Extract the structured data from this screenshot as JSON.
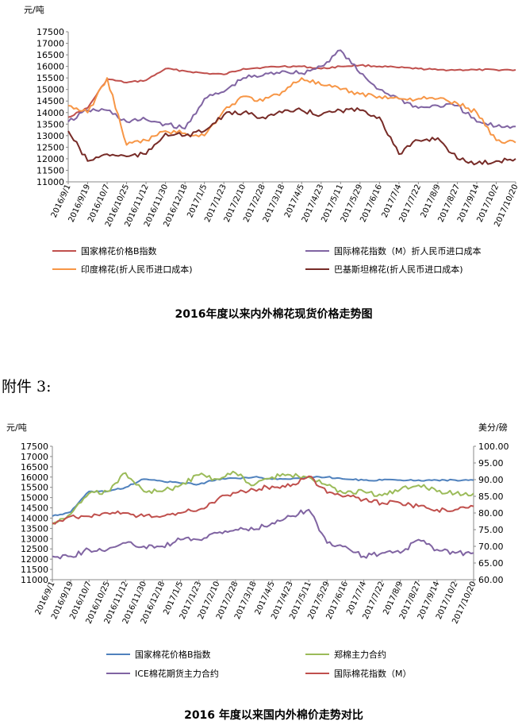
{
  "attachment_label": "附件 3:",
  "chart_data": [
    {
      "type": "line",
      "title": "2016年度以来内外棉花现货价格走势图",
      "ylabel": "元/吨",
      "ylim": [
        11000,
        17500
      ],
      "yticks": [
        11000,
        11500,
        12000,
        12500,
        13000,
        13500,
        14000,
        14500,
        15000,
        15500,
        16000,
        16500,
        17000,
        17500
      ],
      "grid": false,
      "legend": "bottom",
      "x": [
        "2016/9/1",
        "2016/9/19",
        "2016/10/7",
        "2016/10/25",
        "2016/11/12",
        "2016/11/30",
        "2016/12/18",
        "2017/1/5",
        "2017/1/23",
        "2017/2/10",
        "2017/2/28",
        "2017/3/18",
        "2017/4/5",
        "2017/4/23",
        "2017/5/11",
        "2017/5/29",
        "2017/6/16",
        "2017/7/4",
        "2017/7/22",
        "2017/8/9",
        "2017/8/27",
        "2017/9/14",
        "2017/10/2",
        "2017/10/20"
      ],
      "series": [
        {
          "name": "国家棉花价格B指数",
          "color": "#c0504d",
          "axis": "left",
          "values": [
            13800,
            14200,
            15450,
            15300,
            15400,
            15900,
            15800,
            15700,
            15650,
            15900,
            15950,
            16000,
            16000,
            15900,
            16000,
            16050,
            16000,
            15950,
            15900,
            15850,
            15850,
            15850,
            15850,
            15850
          ]
        },
        {
          "name": "国际棉花指数（M）折人民币进口成本",
          "color": "#8064a2",
          "axis": "left",
          "values": [
            13600,
            14100,
            14100,
            13600,
            13700,
            13500,
            13300,
            14600,
            14900,
            15500,
            15600,
            15800,
            15700,
            16000,
            16700,
            15700,
            15000,
            14600,
            14200,
            14300,
            14300,
            13600,
            13400,
            13400
          ]
        },
        {
          "name": "印度棉花(折人民币进口成本)",
          "color": "#f79646",
          "axis": "left",
          "values": [
            14300,
            14000,
            15500,
            12600,
            12800,
            13200,
            13100,
            13000,
            14100,
            14700,
            14500,
            14900,
            15500,
            15200,
            15000,
            14800,
            14700,
            14600,
            14600,
            14600,
            14400,
            14000,
            12800,
            12700
          ]
        },
        {
          "name": "巴基斯坦棉花(折人民币进口成本)",
          "color": "#772b27",
          "axis": "left",
          "values": [
            13200,
            11900,
            12200,
            12100,
            12200,
            13100,
            13000,
            13200,
            13900,
            14000,
            13800,
            14000,
            14100,
            13900,
            14100,
            14100,
            13800,
            12200,
            12800,
            12900,
            12000,
            11800,
            11900,
            12000
          ]
        }
      ]
    },
    {
      "type": "line",
      "title": "2016 年度以来国内外棉价走势对比",
      "ylabel": "元/吨",
      "y2label": "美分/磅",
      "ylim": [
        11000,
        17500
      ],
      "yticks": [
        11000,
        11500,
        12000,
        12500,
        13000,
        13500,
        14000,
        14500,
        15000,
        15500,
        16000,
        16500,
        17000,
        17500
      ],
      "y2lim": [
        60,
        100
      ],
      "y2ticks": [
        60.0,
        65.0,
        70.0,
        75.0,
        80.0,
        85.0,
        90.0,
        95.0,
        100.0
      ],
      "y2tick_labels": [
        "60.00",
        "65.00",
        "70.00",
        "75.00",
        "80.00",
        "85.00",
        "90.00",
        "95.00",
        "100.00"
      ],
      "grid": false,
      "legend": "bottom",
      "x": [
        "2016/9/1",
        "2016/9/19",
        "2016/10/7",
        "2016/10/25",
        "2016/11/12",
        "2016/11/30",
        "2016/12/18",
        "2017/1/5",
        "2017/1/23",
        "2017/2/10",
        "2017/2/28",
        "2017/3/18",
        "2017/4/5",
        "2017/4/23",
        "2017/5/11",
        "2017/5/29",
        "2017/6/16",
        "2017/7/4",
        "2017/7/22",
        "2017/8/9",
        "2017/8/27",
        "2017/9/14",
        "2017/10/2",
        "2017/10/20"
      ],
      "series": [
        {
          "name": "国家棉花价格B指数",
          "color": "#4f81bd",
          "axis": "left",
          "values": [
            14100,
            14300,
            15300,
            15300,
            15500,
            15900,
            15800,
            15700,
            15650,
            15900,
            15950,
            16000,
            15900,
            15900,
            16000,
            16000,
            15900,
            15850,
            15850,
            15850,
            15850,
            15850,
            15850,
            15850
          ]
        },
        {
          "name": "郑棉主力合约",
          "color": "#9bbb59",
          "axis": "left",
          "values": [
            13700,
            14200,
            15200,
            15300,
            16200,
            15300,
            15300,
            15600,
            16100,
            15900,
            16200,
            15600,
            16000,
            16100,
            16000,
            15600,
            15200,
            15300,
            15100,
            15400,
            15600,
            15300,
            15200,
            15200
          ]
        },
        {
          "name": "ICE棉花期货主力合约",
          "color": "#8064a2",
          "axis": "right",
          "values": [
            67,
            67,
            69,
            69,
            71,
            70,
            70,
            72,
            72,
            74,
            75,
            75,
            77,
            79,
            81,
            71,
            70,
            67,
            68,
            68,
            72,
            69,
            68,
            68
          ]
        },
        {
          "name": "国际棉花指数（M）",
          "color": "#c0504d",
          "axis": "right",
          "values": [
            77,
            79,
            79,
            80,
            80,
            79,
            79,
            80,
            81,
            84,
            86,
            87,
            88,
            88,
            91,
            86,
            85,
            84,
            83,
            83,
            82,
            81,
            81,
            82
          ]
        }
      ]
    }
  ]
}
